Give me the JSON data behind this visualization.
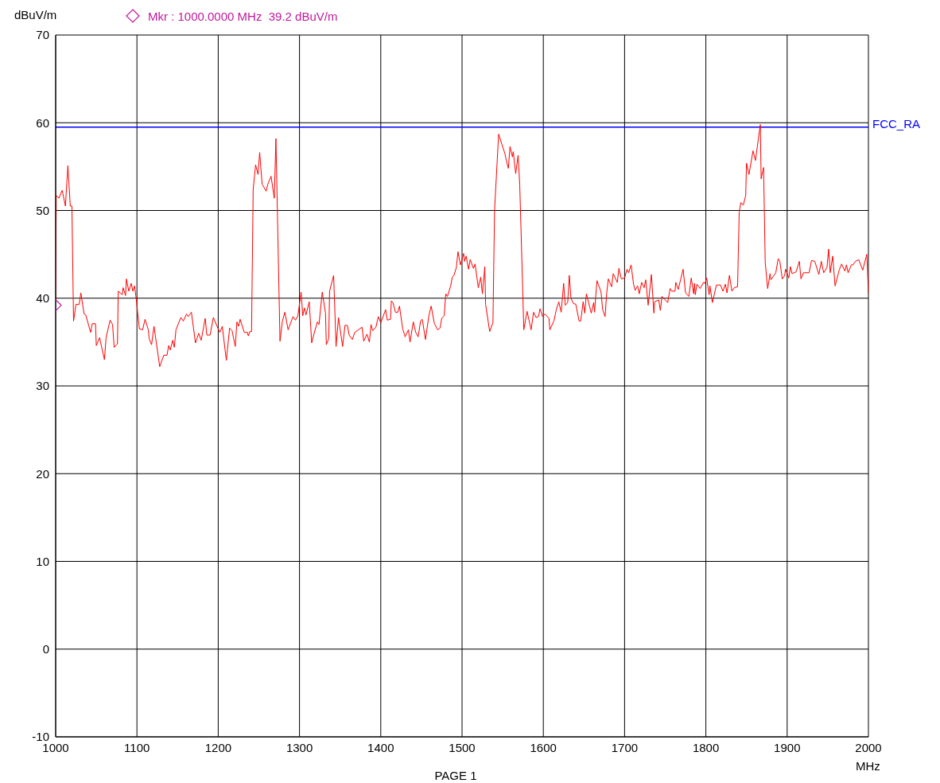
{
  "chart_data": {
    "type": "line",
    "ylabel": "dBuV/m",
    "xlabel": "MHz",
    "annotations": [
      "PAGE 1"
    ],
    "xlim": [
      1000,
      2000
    ],
    "xticks": [
      1000,
      1100,
      1200,
      1300,
      1400,
      1500,
      1600,
      1700,
      1800,
      1900,
      2000
    ],
    "ylim": [
      -10,
      70
    ],
    "yticks": [
      -10,
      0,
      10,
      20,
      30,
      40,
      50,
      60,
      70
    ],
    "grid": true,
    "legend": "top",
    "marker": "none",
    "line_style": "solid",
    "ref_lines": [
      {
        "axis": "y",
        "value": 59.5,
        "label": "FCC_RA",
        "color": "#0000ff"
      }
    ],
    "series": [
      {
        "color": "#ff0000",
        "x": [
          1000,
          1000.7,
          1004,
          1008,
          1012,
          1015,
          1018,
          1020,
          1022,
          1025,
          1029,
          1031,
          1035,
          1037,
          1043,
          1045,
          1049,
          1050,
          1054,
          1060,
          1062,
          1067,
          1070,
          1072,
          1076,
          1077,
          1082,
          1083,
          1086,
          1087,
          1090,
          1093,
          1095,
          1097,
          1099,
          1103,
          1107,
          1110,
          1114,
          1115,
          1118,
          1121,
          1128,
          1133,
          1137,
          1139,
          1141,
          1144,
          1146,
          1148,
          1154,
          1157,
          1161,
          1163,
          1167,
          1172,
          1176,
          1179,
          1184,
          1186,
          1190,
          1194,
          1199,
          1202,
          1205,
          1210,
          1214,
          1217,
          1221,
          1223,
          1225,
          1227,
          1232,
          1236,
          1237,
          1239,
          1241,
          1243,
          1246,
          1249,
          1251,
          1254,
          1259,
          1261,
          1265,
          1269,
          1271,
          1276,
          1279,
          1282,
          1286,
          1292,
          1295,
          1298,
          1302,
          1304,
          1306,
          1308,
          1312,
          1315,
          1318,
          1322,
          1324,
          1328,
          1332,
          1333,
          1336,
          1337,
          1342,
          1345,
          1348,
          1353,
          1356,
          1359,
          1361,
          1365,
          1368,
          1377,
          1379,
          1383,
          1386,
          1388,
          1390,
          1394,
          1397,
          1400,
          1406,
          1408,
          1412,
          1413,
          1415,
          1418,
          1421,
          1423,
          1427,
          1430,
          1434,
          1436,
          1440,
          1443,
          1446,
          1449,
          1451,
          1455,
          1459,
          1462,
          1466,
          1470,
          1473,
          1475,
          1478,
          1480,
          1482,
          1486,
          1488,
          1490,
          1493,
          1495,
          1498,
          1502,
          1503,
          1505,
          1508,
          1510,
          1514,
          1516,
          1520,
          1523,
          1525,
          1528,
          1529,
          1534,
          1538,
          1540,
          1545,
          1553,
          1554,
          1557,
          1559,
          1562,
          1563,
          1566,
          1569,
          1571,
          1576,
          1580,
          1585,
          1588,
          1591,
          1594,
          1596,
          1599,
          1602,
          1607,
          1608,
          1613,
          1616,
          1619,
          1622,
          1625,
          1627,
          1630,
          1632,
          1634,
          1637,
          1640,
          1644,
          1646,
          1649,
          1651,
          1653,
          1659,
          1662,
          1663,
          1666,
          1671,
          1673,
          1676,
          1678,
          1680,
          1684,
          1686,
          1691,
          1693,
          1696,
          1700,
          1703,
          1705,
          1708,
          1711,
          1713,
          1716,
          1718,
          1721,
          1724,
          1726,
          1729,
          1733,
          1736,
          1737,
          1742,
          1744,
          1746,
          1750,
          1753,
          1756,
          1758,
          1762,
          1763,
          1766,
          1772,
          1775,
          1779,
          1782,
          1785,
          1786,
          1787,
          1789,
          1793,
          1797,
          1799,
          1801,
          1804,
          1805,
          1808,
          1813,
          1818,
          1821,
          1824,
          1826,
          1829,
          1832,
          1835,
          1839,
          1841,
          1843,
          1846,
          1849,
          1850,
          1853,
          1858,
          1861,
          1867,
          1868,
          1871,
          1873,
          1876,
          1879,
          1880,
          1886,
          1889,
          1891,
          1894,
          1897,
          1898,
          1902,
          1904,
          1906,
          1911,
          1915,
          1917,
          1920,
          1927,
          1930,
          1934,
          1939,
          1942,
          1945,
          1949,
          1951,
          1953,
          1956,
          1959,
          1964,
          1967,
          1971,
          1973,
          1975,
          1979,
          1981,
          1984,
          1988,
          1993,
          1998,
          2000
        ],
        "values": [
          40,
          51.7,
          51.4,
          52.3,
          50.5,
          55.1,
          50.5,
          50.5,
          37.4,
          39.3,
          39.3,
          40.6,
          38.2,
          38.1,
          36.1,
          37.1,
          37.1,
          34.6,
          35.5,
          33.0,
          35.5,
          37.5,
          37.0,
          34.4,
          34.8,
          40.8,
          40.4,
          41.2,
          40.3,
          42.2,
          40.8,
          41.7,
          40.8,
          41.4,
          40,
          36.5,
          36.4,
          37.6,
          36.4,
          35.4,
          34.7,
          36.8,
          32.2,
          33.5,
          33.5,
          34.6,
          34.1,
          35.2,
          34.4,
          36.4,
          37.8,
          37.4,
          38.2,
          37.9,
          38.4,
          34.9,
          36.0,
          35.2,
          37.7,
          35.8,
          35.8,
          37.8,
          36.7,
          36.1,
          36.8,
          32.9,
          36.6,
          36.3,
          34.5,
          37.3,
          36.8,
          37.6,
          36.1,
          36.1,
          35.7,
          36.2,
          36.2,
          52.4,
          55.2,
          54.1,
          56.6,
          53.0,
          52.2,
          53.0,
          53.9,
          51.4,
          58.2,
          35.1,
          37.4,
          38.4,
          36.4,
          37.9,
          37.5,
          38.0,
          40.7,
          38.0,
          38.9,
          38.1,
          39.6,
          34.9,
          36.0,
          37.3,
          37.0,
          40.7,
          38.3,
          34.7,
          35.4,
          40.8,
          42.6,
          34.5,
          37.8,
          34.5,
          36.9,
          36.9,
          35.8,
          35.3,
          36.1,
          36.7,
          35.1,
          35.9,
          35.0,
          37.0,
          36.3,
          36.7,
          37.9,
          37.2,
          38.7,
          37.5,
          37.6,
          39.7,
          39.5,
          38.4,
          38.4,
          39.1,
          36.5,
          35.6,
          36.4,
          35.0,
          37.3,
          36.1,
          35.6,
          37.4,
          37.6,
          35.3,
          37.9,
          39.1,
          37.1,
          36.4,
          36.6,
          37.7,
          38.0,
          40.5,
          40.2,
          41.4,
          42.4,
          42.6,
          43.5,
          45.3,
          43.8,
          45.1,
          44.2,
          44.8,
          43.3,
          44.4,
          43.4,
          43.9,
          41.2,
          42.4,
          40.5,
          43.6,
          39.3,
          36.2,
          37.2,
          50,
          58.7,
          56.4,
          55.9,
          54.8,
          57.3,
          56.1,
          56.7,
          54.2,
          56.3,
          52.9,
          36.4,
          38.5,
          36.4,
          38.4,
          37.8,
          37.9,
          38.8,
          37.9,
          38.2,
          37.7,
          36.4,
          37.4,
          38.7,
          39.6,
          38.4,
          41.7,
          39.2,
          39.5,
          42.6,
          40,
          39.4,
          39.3,
          37.4,
          37.4,
          39.6,
          38.3,
          40.5,
          38.3,
          39.5,
          38.4,
          42,
          40.7,
          38.7,
          37.9,
          40.6,
          42.2,
          41.3,
          42.8,
          41.8,
          43.4,
          42.2,
          42.3,
          43.3,
          42.9,
          43.8,
          41.6,
          40.9,
          41.4,
          40.5,
          41.8,
          41.2,
          42.1,
          39.2,
          42.7,
          38.3,
          39.6,
          39.8,
          38.6,
          40.2,
          39.8,
          39.5,
          41.1,
          40.8,
          40.8,
          41.8,
          41.0,
          43.3,
          40.6,
          40.2,
          42.3,
          40.5,
          41.7,
          40.4,
          41.6,
          41.1,
          41.8,
          41.7,
          42.3,
          40.4,
          41.4,
          39.5,
          41.5,
          41.5,
          40.8,
          41.6,
          40.6,
          42.6,
          40.8,
          41.2,
          41.3,
          49.8,
          50.9,
          50.6,
          51.7,
          55.4,
          54.1,
          56.8,
          55.7,
          59.8,
          53.6,
          54.9,
          44.1,
          41.1,
          42.8,
          42.1,
          42.9,
          44.5,
          44.2,
          42.2,
          42.6,
          43.3,
          42.3,
          43.6,
          42.8,
          43.0,
          44.2,
          42.2,
          42.9,
          42.9,
          44.3,
          44.2,
          42.7,
          44.2,
          42.9,
          43.5,
          45.6,
          42.9,
          44.8,
          41.4,
          43.2,
          43.9,
          43.1,
          43.8,
          42.9,
          43.8,
          43.8,
          44.2,
          44.4,
          43.2,
          45.0,
          40.5
        ]
      },
      {
        "type": "scatter",
        "name": "Mkr : 1000.0000 MHz  39.2 dBuV/m",
        "color": "#c0189c",
        "marker": "diamond",
        "x": [
          1000
        ],
        "values": [
          39.2
        ]
      }
    ]
  }
}
